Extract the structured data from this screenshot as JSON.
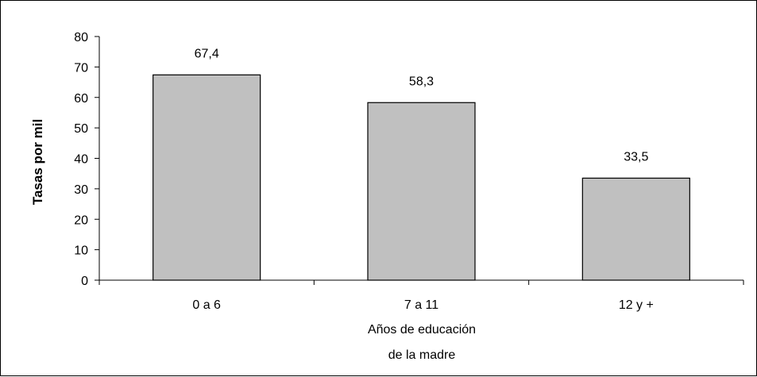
{
  "chart_data": {
    "type": "bar",
    "categories": [
      "0 a 6",
      "7 a 11",
      "12 y +"
    ],
    "values": [
      67.4,
      58.3,
      33.5
    ],
    "data_labels": [
      "67,4",
      "58,3",
      "33,5"
    ],
    "title": "",
    "xlabel": [
      "Años de educación",
      "de la madre"
    ],
    "ylabel": "Tasas por mil",
    "ylim": [
      0,
      80
    ],
    "yticks": [
      0,
      10,
      20,
      30,
      40,
      50,
      60,
      70,
      80
    ],
    "grid": false,
    "legend": "none",
    "bar_color": "#c0c0c0",
    "bar_edge_color": "#000000"
  }
}
